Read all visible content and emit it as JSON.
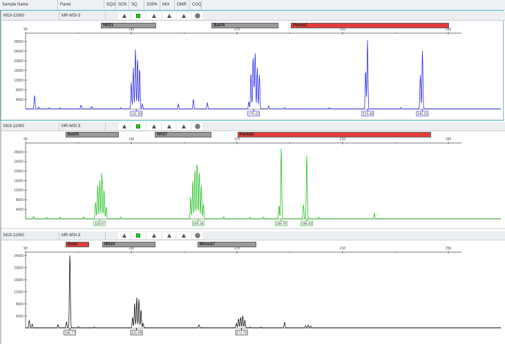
{
  "header": {
    "columns": [
      "Sample Name",
      "Panel",
      "SQO",
      "SOS",
      "SQ",
      "SSPK",
      "MIX",
      "OMR",
      "CGQ"
    ]
  },
  "colors": {
    "panel1": "#2a2aee",
    "panel2": "#22c022",
    "panel3": "#111111",
    "frame": "#5bc8d6",
    "bin_gray": "#999999",
    "bin_red": "#e23c3c"
  },
  "x_axis": {
    "ticks": [
      90,
      130,
      170,
      210,
      250
    ]
  },
  "panels": [
    {
      "sample": "M19-11060",
      "panel": "MR-MSI-3",
      "flags": [
        "",
        "triangle-icon",
        "green-square-icon",
        "triangle-icon",
        "triangle-icon",
        "triangle-icon",
        "circle-icon"
      ],
      "bins": [
        {
          "label": "NR21",
          "from": 118.5,
          "to": 139.5,
          "color": "gray"
        },
        {
          "label": "Bat26",
          "from": 160.4,
          "to": 185.8,
          "color": "gray"
        },
        {
          "label": "PentaC",
          "from": 190.5,
          "to": 250.2,
          "color": "red"
        }
      ],
      "y_ticks": [
        4000,
        8000,
        12000,
        16000,
        20000,
        24000,
        28000
      ],
      "y_max": 28000,
      "peaks": [
        [
          93.4,
          5500
        ],
        [
          95,
          800
        ],
        [
          99,
          500
        ],
        [
          103,
          400
        ],
        [
          111,
          1500
        ],
        [
          115,
          1000
        ],
        [
          126,
          500
        ],
        [
          130,
          11000
        ],
        [
          130.8,
          17000
        ],
        [
          131.6,
          25000
        ],
        [
          132.4,
          21000
        ],
        [
          133.2,
          17000
        ],
        [
          134.2,
          2000
        ],
        [
          147.8,
          2000
        ],
        [
          153.5,
          4000
        ],
        [
          158.8,
          2500
        ],
        [
          176.5,
          6000
        ],
        [
          174.5,
          3000
        ],
        [
          175.3,
          15000
        ],
        [
          176.1,
          21000
        ],
        [
          176.9,
          23000
        ],
        [
          177.7,
          17000
        ],
        [
          178.5,
          14000
        ],
        [
          182,
          1200
        ],
        [
          188,
          600
        ],
        [
          205,
          500
        ],
        [
          219.4,
          28500
        ],
        [
          218.7,
          16000
        ],
        [
          232,
          600
        ],
        [
          240.2,
          24000
        ],
        [
          239.4,
          14000
        ]
      ],
      "size_labels": [
        "131.90",
        "176.32",
        "219.49",
        "240.15"
      ],
      "size_bp": [
        131.9,
        176.32,
        219.49,
        240.15
      ]
    },
    {
      "sample": "M19-11060",
      "panel": "MR-MSI-3",
      "flags": [
        "",
        "triangle-icon",
        "green-square-icon",
        "triangle-icon",
        "triangle-icon",
        "triangle-icon",
        "circle-icon"
      ],
      "bins": [
        {
          "label": "Bat25",
          "from": 105.1,
          "to": 125.3,
          "color": "gray"
        },
        {
          "label": "NR27",
          "from": 138.9,
          "to": 160.3,
          "color": "gray"
        },
        {
          "label": "PentaD",
          "from": 170.2,
          "to": 243.5,
          "color": "red"
        }
      ],
      "y_ticks": [
        4000,
        8000,
        12000,
        16000,
        20000,
        24000,
        28000
      ],
      "y_max": 28000,
      "peaks": [
        [
          93,
          1000
        ],
        [
          98,
          600
        ],
        [
          103,
          700
        ],
        [
          116.5,
          7000
        ],
        [
          117.3,
          14000
        ],
        [
          118.1,
          16000
        ],
        [
          118.9,
          19000
        ],
        [
          119.7,
          12000
        ],
        [
          120.5,
          5000
        ],
        [
          112,
          800
        ],
        [
          126,
          700
        ],
        [
          152.5,
          9000
        ],
        [
          153.3,
          16000
        ],
        [
          154.1,
          21000
        ],
        [
          154.9,
          24000
        ],
        [
          155.7,
          20000
        ],
        [
          156.5,
          14000
        ],
        [
          157.3,
          6000
        ],
        [
          165,
          800
        ],
        [
          175,
          600
        ],
        [
          185.9,
          5500
        ],
        [
          186.75,
          29500
        ],
        [
          195.2,
          6000
        ],
        [
          196.43,
          26500
        ],
        [
          180,
          700
        ],
        [
          201,
          600
        ],
        [
          222,
          2200
        ]
      ],
      "size_labels": [
        "118.07",
        "155.34",
        "186.75",
        "196.43"
      ],
      "size_bp": [
        118.07,
        155.34,
        186.75,
        196.43
      ]
    },
    {
      "sample": "M19-11060",
      "panel": "MR-MSI-3",
      "flags": [
        "",
        "triangle-icon",
        "green-square-icon",
        "triangle-icon",
        "triangle-icon",
        "triangle-icon",
        "circle-icon"
      ],
      "bins": [
        {
          "label": "Amel",
          "from": 105.1,
          "to": 114,
          "color": "red"
        },
        {
          "label": "NR24",
          "from": 119,
          "to": 139.2,
          "color": "gray"
        },
        {
          "label": "Mono27",
          "from": 155,
          "to": 177.3,
          "color": "gray"
        }
      ],
      "y_ticks": [
        4000,
        8000,
        12000,
        16000,
        20000,
        24000
      ],
      "y_max": 24000,
      "peaks": [
        [
          91.4,
          2500
        ],
        [
          92.5,
          1200
        ],
        [
          102.3,
          1000
        ],
        [
          105.5,
          2000
        ],
        [
          106.77,
          24500
        ],
        [
          110,
          400
        ],
        [
          116,
          300
        ],
        [
          130.5,
          3500
        ],
        [
          131.3,
          8000
        ],
        [
          132.1,
          10000
        ],
        [
          132.9,
          9500
        ],
        [
          133.7,
          6000
        ],
        [
          134.5,
          1500
        ],
        [
          155.6,
          1000
        ],
        [
          169.8,
          1500
        ],
        [
          170.6,
          3000
        ],
        [
          171.4,
          3500
        ],
        [
          172.2,
          4000
        ],
        [
          173,
          2500
        ],
        [
          179,
          300
        ],
        [
          175,
          300
        ],
        [
          188,
          1800
        ],
        [
          196,
          700
        ],
        [
          197,
          900
        ],
        [
          198,
          500
        ]
      ],
      "size_labels": [
        "106.77",
        "131.99",
        "171.75"
      ],
      "size_bp": [
        106.77,
        131.99,
        171.75
      ]
    }
  ]
}
